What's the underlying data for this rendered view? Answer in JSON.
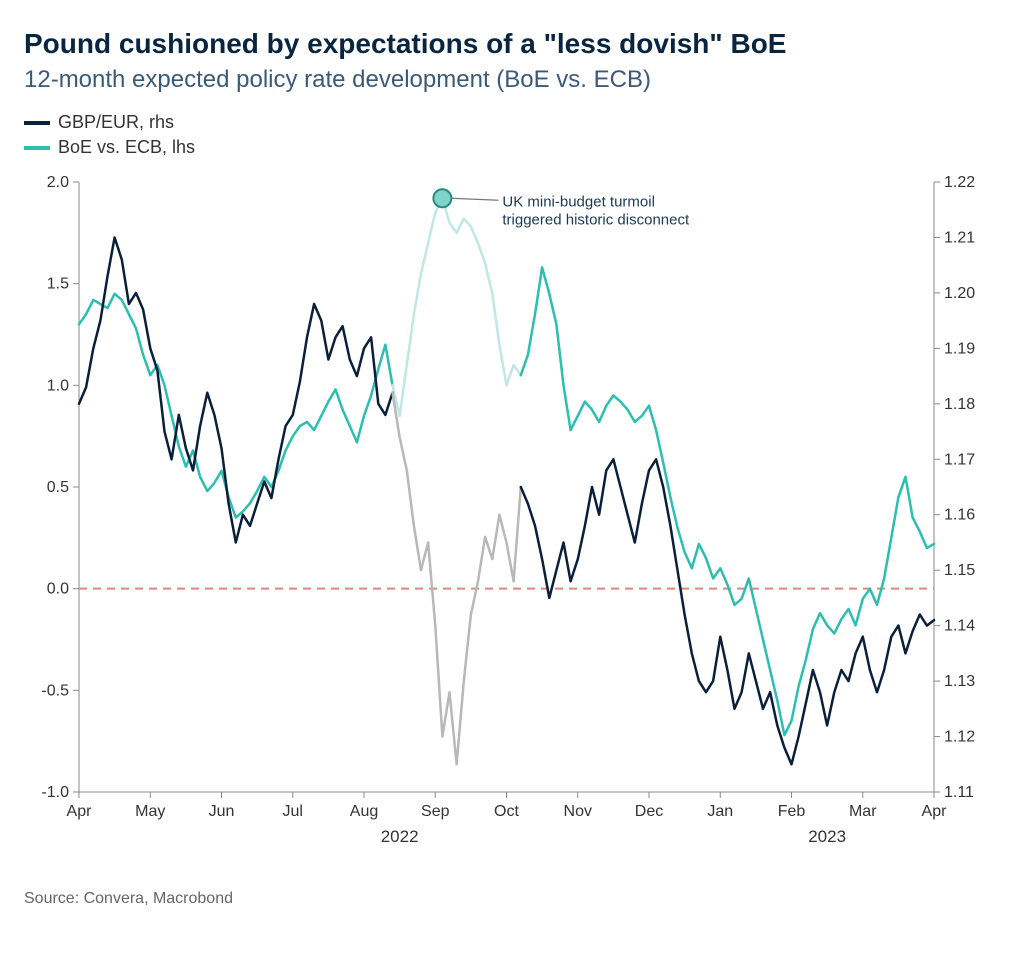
{
  "title": "Pound cushioned by expectations of a \"less dovish\" BoE",
  "subtitle": "12-month expected policy rate development (BoE vs. ECB)",
  "legend": {
    "series1": {
      "label": "GBP/EUR, rhs",
      "color": "#0a1f3a"
    },
    "series2": {
      "label": "BoE vs. ECB, lhs",
      "color": "#2bbfb0"
    }
  },
  "source": "Source: Convera, Macrobond",
  "annotation": {
    "line1": "UK mini-budget turmoil",
    "line2": "triggered historic disconnect",
    "marker_color": "#7fd4c9",
    "marker_stroke": "#2a8a80"
  },
  "chart": {
    "type": "line-dual-axis",
    "background_color": "#ffffff",
    "axis_color": "#888888",
    "zero_line_color": "#e08585",
    "zero_line_dash": "8,6",
    "faded_gbp_color": "#b8b8b8",
    "faded_ecb_color": "#bfe8e2",
    "x": {
      "ticks": [
        "Apr",
        "May",
        "Jun",
        "Jul",
        "Aug",
        "Sep",
        "Oct",
        "Nov",
        "Dec",
        "Jan",
        "Feb",
        "Mar",
        "Apr"
      ],
      "years": {
        "2022": 4.5,
        "2023": 10.5
      }
    },
    "y_left": {
      "min": -1.0,
      "max": 2.0,
      "step": 0.5
    },
    "y_right": {
      "min": 1.11,
      "max": 1.22,
      "step": 0.01
    },
    "series_gbp_eur": {
      "color": "#0a1f3a",
      "width": 2.5,
      "axis": "right",
      "data": [
        [
          0.0,
          1.18
        ],
        [
          0.1,
          1.183
        ],
        [
          0.2,
          1.19
        ],
        [
          0.3,
          1.195
        ],
        [
          0.4,
          1.203
        ],
        [
          0.5,
          1.21
        ],
        [
          0.6,
          1.206
        ],
        [
          0.7,
          1.198
        ],
        [
          0.8,
          1.2
        ],
        [
          0.9,
          1.197
        ],
        [
          1.0,
          1.19
        ],
        [
          1.1,
          1.186
        ],
        [
          1.2,
          1.175
        ],
        [
          1.3,
          1.17
        ],
        [
          1.4,
          1.178
        ],
        [
          1.5,
          1.172
        ],
        [
          1.6,
          1.168
        ],
        [
          1.7,
          1.176
        ],
        [
          1.8,
          1.182
        ],
        [
          1.9,
          1.178
        ],
        [
          2.0,
          1.172
        ],
        [
          2.1,
          1.162
        ],
        [
          2.2,
          1.155
        ],
        [
          2.3,
          1.16
        ],
        [
          2.4,
          1.158
        ],
        [
          2.5,
          1.162
        ],
        [
          2.6,
          1.166
        ],
        [
          2.7,
          1.163
        ],
        [
          2.8,
          1.17
        ],
        [
          2.9,
          1.176
        ],
        [
          3.0,
          1.178
        ],
        [
          3.1,
          1.184
        ],
        [
          3.2,
          1.192
        ],
        [
          3.3,
          1.198
        ],
        [
          3.4,
          1.195
        ],
        [
          3.5,
          1.188
        ],
        [
          3.6,
          1.192
        ],
        [
          3.7,
          1.194
        ],
        [
          3.8,
          1.188
        ],
        [
          3.9,
          1.185
        ],
        [
          4.0,
          1.19
        ],
        [
          4.1,
          1.192
        ],
        [
          4.2,
          1.18
        ],
        [
          4.3,
          1.178
        ],
        [
          4.4,
          1.182
        ],
        [
          4.5,
          1.174
        ],
        [
          4.6,
          1.168
        ],
        [
          4.7,
          1.158
        ],
        [
          4.8,
          1.15
        ],
        [
          4.9,
          1.155
        ],
        [
          5.0,
          1.14
        ],
        [
          5.1,
          1.12
        ],
        [
          5.2,
          1.128
        ],
        [
          5.3,
          1.115
        ],
        [
          5.4,
          1.13
        ],
        [
          5.5,
          1.142
        ],
        [
          5.6,
          1.148
        ],
        [
          5.7,
          1.156
        ],
        [
          5.8,
          1.152
        ],
        [
          5.9,
          1.16
        ],
        [
          6.0,
          1.155
        ],
        [
          6.1,
          1.148
        ],
        [
          6.2,
          1.165
        ],
        [
          6.3,
          1.162
        ],
        [
          6.4,
          1.158
        ],
        [
          6.5,
          1.152
        ],
        [
          6.6,
          1.145
        ],
        [
          6.7,
          1.15
        ],
        [
          6.8,
          1.155
        ],
        [
          6.9,
          1.148
        ],
        [
          7.0,
          1.152
        ],
        [
          7.1,
          1.158
        ],
        [
          7.2,
          1.165
        ],
        [
          7.3,
          1.16
        ],
        [
          7.4,
          1.168
        ],
        [
          7.5,
          1.17
        ],
        [
          7.6,
          1.165
        ],
        [
          7.7,
          1.16
        ],
        [
          7.8,
          1.155
        ],
        [
          7.9,
          1.162
        ],
        [
          8.0,
          1.168
        ],
        [
          8.1,
          1.17
        ],
        [
          8.2,
          1.165
        ],
        [
          8.3,
          1.158
        ],
        [
          8.4,
          1.15
        ],
        [
          8.5,
          1.142
        ],
        [
          8.6,
          1.135
        ],
        [
          8.7,
          1.13
        ],
        [
          8.8,
          1.128
        ],
        [
          8.9,
          1.13
        ],
        [
          9.0,
          1.138
        ],
        [
          9.1,
          1.132
        ],
        [
          9.2,
          1.125
        ],
        [
          9.3,
          1.128
        ],
        [
          9.4,
          1.135
        ],
        [
          9.5,
          1.13
        ],
        [
          9.6,
          1.125
        ],
        [
          9.7,
          1.128
        ],
        [
          9.8,
          1.122
        ],
        [
          9.9,
          1.118
        ],
        [
          10.0,
          1.115
        ],
        [
          10.1,
          1.12
        ],
        [
          10.2,
          1.126
        ],
        [
          10.3,
          1.132
        ],
        [
          10.4,
          1.128
        ],
        [
          10.5,
          1.122
        ],
        [
          10.6,
          1.128
        ],
        [
          10.7,
          1.132
        ],
        [
          10.8,
          1.13
        ],
        [
          10.9,
          1.135
        ],
        [
          11.0,
          1.138
        ],
        [
          11.1,
          1.132
        ],
        [
          11.2,
          1.128
        ],
        [
          11.3,
          1.132
        ],
        [
          11.4,
          1.138
        ],
        [
          11.5,
          1.14
        ],
        [
          11.6,
          1.135
        ],
        [
          11.7,
          1.139
        ],
        [
          11.8,
          1.142
        ],
        [
          11.9,
          1.14
        ],
        [
          12.0,
          1.141
        ]
      ],
      "faded_range": [
        4.5,
        6.2
      ]
    },
    "series_boe_ecb": {
      "color": "#2bbfb0",
      "width": 2.5,
      "axis": "left",
      "data": [
        [
          0.0,
          1.3
        ],
        [
          0.1,
          1.35
        ],
        [
          0.2,
          1.42
        ],
        [
          0.3,
          1.4
        ],
        [
          0.4,
          1.38
        ],
        [
          0.5,
          1.45
        ],
        [
          0.6,
          1.42
        ],
        [
          0.7,
          1.35
        ],
        [
          0.8,
          1.28
        ],
        [
          0.9,
          1.15
        ],
        [
          1.0,
          1.05
        ],
        [
          1.1,
          1.1
        ],
        [
          1.2,
          1.0
        ],
        [
          1.3,
          0.85
        ],
        [
          1.4,
          0.7
        ],
        [
          1.5,
          0.6
        ],
        [
          1.6,
          0.68
        ],
        [
          1.7,
          0.55
        ],
        [
          1.8,
          0.48
        ],
        [
          1.9,
          0.52
        ],
        [
          2.0,
          0.58
        ],
        [
          2.1,
          0.45
        ],
        [
          2.2,
          0.35
        ],
        [
          2.3,
          0.38
        ],
        [
          2.4,
          0.42
        ],
        [
          2.5,
          0.48
        ],
        [
          2.6,
          0.55
        ],
        [
          2.7,
          0.5
        ],
        [
          2.8,
          0.58
        ],
        [
          2.9,
          0.68
        ],
        [
          3.0,
          0.75
        ],
        [
          3.1,
          0.8
        ],
        [
          3.2,
          0.82
        ],
        [
          3.3,
          0.78
        ],
        [
          3.4,
          0.85
        ],
        [
          3.5,
          0.92
        ],
        [
          3.6,
          0.98
        ],
        [
          3.7,
          0.88
        ],
        [
          3.8,
          0.8
        ],
        [
          3.9,
          0.72
        ],
        [
          4.0,
          0.85
        ],
        [
          4.1,
          0.95
        ],
        [
          4.2,
          1.08
        ],
        [
          4.3,
          1.2
        ],
        [
          4.4,
          1.0
        ],
        [
          4.5,
          0.85
        ],
        [
          4.6,
          1.1
        ],
        [
          4.7,
          1.35
        ],
        [
          4.8,
          1.55
        ],
        [
          4.9,
          1.7
        ],
        [
          5.0,
          1.85
        ],
        [
          5.1,
          1.92
        ],
        [
          5.2,
          1.8
        ],
        [
          5.3,
          1.75
        ],
        [
          5.4,
          1.82
        ],
        [
          5.5,
          1.78
        ],
        [
          5.6,
          1.7
        ],
        [
          5.7,
          1.6
        ],
        [
          5.8,
          1.45
        ],
        [
          5.9,
          1.2
        ],
        [
          6.0,
          1.0
        ],
        [
          6.1,
          1.1
        ],
        [
          6.2,
          1.05
        ],
        [
          6.3,
          1.15
        ],
        [
          6.4,
          1.35
        ],
        [
          6.5,
          1.58
        ],
        [
          6.6,
          1.45
        ],
        [
          6.7,
          1.3
        ],
        [
          6.8,
          1.0
        ],
        [
          6.9,
          0.78
        ],
        [
          7.0,
          0.85
        ],
        [
          7.1,
          0.92
        ],
        [
          7.2,
          0.88
        ],
        [
          7.3,
          0.82
        ],
        [
          7.4,
          0.9
        ],
        [
          7.5,
          0.95
        ],
        [
          7.6,
          0.92
        ],
        [
          7.7,
          0.88
        ],
        [
          7.8,
          0.82
        ],
        [
          7.9,
          0.85
        ],
        [
          8.0,
          0.9
        ],
        [
          8.1,
          0.78
        ],
        [
          8.2,
          0.62
        ],
        [
          8.3,
          0.45
        ],
        [
          8.4,
          0.3
        ],
        [
          8.5,
          0.18
        ],
        [
          8.6,
          0.1
        ],
        [
          8.7,
          0.22
        ],
        [
          8.8,
          0.15
        ],
        [
          8.9,
          0.05
        ],
        [
          9.0,
          0.1
        ],
        [
          9.1,
          0.02
        ],
        [
          9.2,
          -0.08
        ],
        [
          9.3,
          -0.05
        ],
        [
          9.4,
          0.05
        ],
        [
          9.5,
          -0.1
        ],
        [
          9.6,
          -0.25
        ],
        [
          9.7,
          -0.4
        ],
        [
          9.8,
          -0.55
        ],
        [
          9.9,
          -0.72
        ],
        [
          10.0,
          -0.65
        ],
        [
          10.1,
          -0.48
        ],
        [
          10.2,
          -0.35
        ],
        [
          10.3,
          -0.2
        ],
        [
          10.4,
          -0.12
        ],
        [
          10.5,
          -0.18
        ],
        [
          10.6,
          -0.22
        ],
        [
          10.7,
          -0.15
        ],
        [
          10.8,
          -0.1
        ],
        [
          10.9,
          -0.18
        ],
        [
          11.0,
          -0.05
        ],
        [
          11.1,
          0.0
        ],
        [
          11.2,
          -0.08
        ],
        [
          11.3,
          0.05
        ],
        [
          11.4,
          0.25
        ],
        [
          11.5,
          0.45
        ],
        [
          11.6,
          0.55
        ],
        [
          11.7,
          0.35
        ],
        [
          11.8,
          0.28
        ],
        [
          11.9,
          0.2
        ],
        [
          12.0,
          0.22
        ]
      ],
      "faded_range": [
        4.5,
        6.2
      ]
    },
    "annotation_marker": {
      "x": 5.1,
      "y_left": 1.92
    }
  }
}
